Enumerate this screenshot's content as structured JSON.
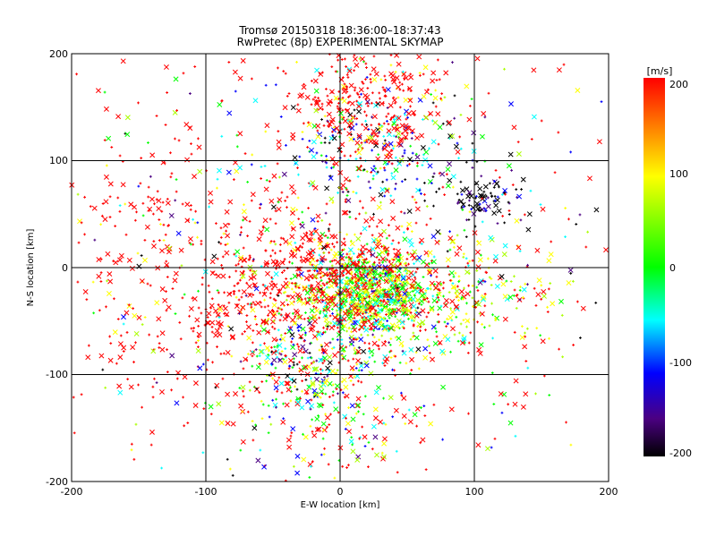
{
  "chart_data": {
    "type": "scatter",
    "title": "Tromsø 20150318 18:36:00–18:37:43",
    "subtitle": "RwPretec (8p) EXPERIMENTAL SKYMAP",
    "xlabel": "E-W location [km]",
    "ylabel": "N-S location [km]",
    "xlim": [
      -200,
      200
    ],
    "ylim": [
      -200,
      200
    ],
    "xticks": [
      "-200",
      "-100",
      "0",
      "100",
      "200"
    ],
    "yticks": [
      "-200",
      "-100",
      "0",
      "100",
      "200"
    ],
    "grid": true,
    "colorbar": {
      "label": "[m/s]",
      "range": [
        -200,
        200
      ],
      "ticks": [
        "200",
        "100",
        "0",
        "-100",
        "-200"
      ],
      "colormap": [
        "#000000",
        "#4b0082",
        "#0000ff",
        "#00ffff",
        "#00ff00",
        "#ffff00",
        "#ff0000"
      ]
    },
    "markers": [
      "x",
      "+"
    ],
    "clusters": [
      {
        "x": 20,
        "y": -25,
        "sx": 25,
        "sy": 22,
        "n": 900,
        "v": 20,
        "sv": 70
      },
      {
        "x": -15,
        "y": 0,
        "sx": 45,
        "sy": 30,
        "n": 400,
        "v": 150,
        "sv": 40
      },
      {
        "x": 90,
        "y": -30,
        "sx": 35,
        "sy": 25,
        "n": 250,
        "v": 60,
        "sv": 70
      },
      {
        "x": 30,
        "y": 110,
        "sx": 30,
        "sy": 25,
        "n": 200,
        "v": -100,
        "sv": 80
      },
      {
        "x": 105,
        "y": 65,
        "sx": 15,
        "sy": 15,
        "n": 100,
        "v": -180,
        "sv": 40
      },
      {
        "x": 30,
        "y": 150,
        "sx": 30,
        "sy": 25,
        "n": 200,
        "v": 140,
        "sv": 60
      },
      {
        "x": -20,
        "y": -90,
        "sx": 25,
        "sy": 20,
        "n": 200,
        "v": -30,
        "sv": 100
      },
      {
        "x": -60,
        "y": -50,
        "sx": 55,
        "sy": 40,
        "n": 300,
        "v": 160,
        "sv": 50
      },
      {
        "x": -140,
        "y": 50,
        "sx": 40,
        "sy": 60,
        "n": 150,
        "v": 180,
        "sv": 40
      },
      {
        "x": 0,
        "y": 150,
        "sx": 25,
        "sy": 35,
        "n": 120,
        "v": 180,
        "sv": 40
      },
      {
        "x": -5,
        "y": -150,
        "sx": 35,
        "sy": 30,
        "n": 120,
        "v": 40,
        "sv": 120
      },
      {
        "x": 0,
        "y": 0,
        "sx": 110,
        "sy": 110,
        "n": 700,
        "v": 60,
        "sv": 150
      }
    ]
  }
}
